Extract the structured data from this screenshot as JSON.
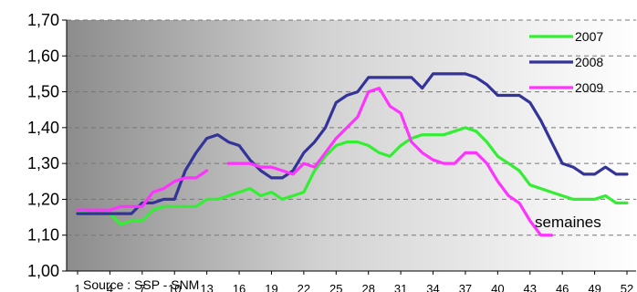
{
  "chart_data": {
    "type": "line",
    "title": "",
    "xlabel": "semaines",
    "ylabel": "",
    "source": "Source : SSP - SNM",
    "ylim": [
      1.0,
      1.7
    ],
    "yticks": [
      "1,00",
      "1,10",
      "1,20",
      "1,30",
      "1,40",
      "1,50",
      "1,60",
      "1,70"
    ],
    "xlim": [
      1,
      52
    ],
    "xticks": [
      1,
      4,
      7,
      10,
      13,
      16,
      19,
      22,
      25,
      28,
      31,
      34,
      37,
      40,
      43,
      46,
      49,
      52
    ],
    "grid": "horizontal dashed",
    "legend_position": "top-right",
    "background": "gradient grey to white",
    "series": [
      {
        "name": "2007",
        "color": "#33ee33",
        "x": [
          1,
          2,
          3,
          4,
          5,
          6,
          7,
          8,
          9,
          10,
          11,
          12,
          13,
          14,
          15,
          16,
          17,
          18,
          19,
          20,
          21,
          22,
          23,
          24,
          25,
          26,
          27,
          28,
          29,
          30,
          31,
          32,
          33,
          34,
          35,
          36,
          37,
          38,
          39,
          40,
          41,
          42,
          43,
          44,
          45,
          46,
          47,
          48,
          49,
          50,
          51,
          52
        ],
        "values": [
          1.17,
          1.16,
          1.16,
          1.16,
          1.13,
          1.14,
          1.14,
          1.17,
          1.18,
          1.18,
          1.18,
          1.18,
          1.2,
          1.2,
          1.21,
          1.22,
          1.23,
          1.21,
          1.22,
          1.2,
          1.21,
          1.22,
          1.28,
          1.32,
          1.35,
          1.36,
          1.36,
          1.35,
          1.33,
          1.32,
          1.35,
          1.37,
          1.38,
          1.38,
          1.38,
          1.39,
          1.4,
          1.39,
          1.36,
          1.32,
          1.3,
          1.28,
          1.24,
          1.23,
          1.22,
          1.21,
          1.2,
          1.2,
          1.2,
          1.21,
          1.19,
          1.19
        ]
      },
      {
        "name": "2008",
        "color": "#333399",
        "x": [
          1,
          2,
          3,
          4,
          5,
          6,
          7,
          8,
          9,
          10,
          11,
          12,
          13,
          14,
          15,
          16,
          17,
          18,
          19,
          20,
          21,
          22,
          23,
          24,
          25,
          26,
          27,
          28,
          29,
          30,
          31,
          32,
          33,
          34,
          35,
          36,
          37,
          38,
          39,
          40,
          41,
          42,
          43,
          44,
          45,
          46,
          47,
          48,
          49,
          50,
          51,
          52
        ],
        "values": [
          1.16,
          1.16,
          1.16,
          1.16,
          1.16,
          1.16,
          1.19,
          1.19,
          1.2,
          1.2,
          1.28,
          1.33,
          1.37,
          1.38,
          1.36,
          1.35,
          1.31,
          1.28,
          1.26,
          1.26,
          1.28,
          1.33,
          1.36,
          1.4,
          1.47,
          1.49,
          1.5,
          1.54,
          1.54,
          1.54,
          1.54,
          1.54,
          1.51,
          1.55,
          1.55,
          1.55,
          1.55,
          1.54,
          1.52,
          1.49,
          1.49,
          1.49,
          1.47,
          1.42,
          1.36,
          1.3,
          1.29,
          1.27,
          1.27,
          1.29,
          1.27,
          1.27
        ]
      },
      {
        "name": "2009",
        "color": "#ff33ff",
        "x": [
          1,
          2,
          3,
          4,
          5,
          6,
          7,
          8,
          9,
          10,
          11,
          12,
          13,
          null,
          15,
          16,
          17,
          18,
          19,
          20,
          21,
          22,
          23,
          24,
          25,
          26,
          27,
          28,
          29,
          30,
          31,
          32,
          33,
          34,
          35,
          36,
          37,
          38,
          39,
          40,
          41,
          42,
          43,
          44,
          45
        ],
        "values": [
          1.17,
          1.17,
          1.17,
          1.17,
          1.18,
          1.18,
          1.18,
          1.22,
          1.23,
          1.25,
          1.26,
          1.26,
          1.28,
          null,
          1.3,
          1.3,
          1.3,
          1.29,
          1.29,
          1.28,
          1.27,
          1.3,
          1.29,
          1.33,
          1.37,
          1.4,
          1.43,
          1.5,
          1.51,
          1.46,
          1.44,
          1.36,
          1.33,
          1.31,
          1.3,
          1.3,
          1.33,
          1.33,
          1.3,
          1.25,
          1.21,
          1.19,
          1.14,
          1.1,
          1.1
        ]
      }
    ]
  }
}
